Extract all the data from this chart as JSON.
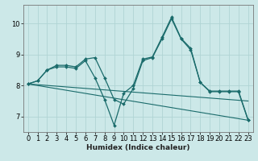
{
  "xlabel": "Humidex (Indice chaleur)",
  "background_color": "#cce8e8",
  "grid_color": "#b0d4d4",
  "line_color": "#1a6b6b",
  "xlim": [
    -0.5,
    23.5
  ],
  "ylim": [
    6.5,
    10.6
  ],
  "yticks": [
    7,
    8,
    9,
    10
  ],
  "xticks": [
    0,
    1,
    2,
    3,
    4,
    5,
    6,
    7,
    8,
    9,
    10,
    11,
    12,
    13,
    14,
    15,
    16,
    17,
    18,
    19,
    20,
    21,
    22,
    23
  ],
  "lines": [
    {
      "x": [
        0,
        1,
        2,
        3,
        4,
        5,
        6,
        7,
        8,
        9,
        10,
        11,
        12,
        13,
        14,
        15,
        16,
        17,
        18,
        19,
        20,
        21,
        22,
        23
      ],
      "y": [
        8.05,
        8.15,
        8.5,
        8.65,
        8.65,
        8.6,
        8.85,
        8.9,
        8.25,
        7.55,
        7.4,
        7.9,
        8.8,
        8.9,
        9.5,
        10.15,
        9.5,
        9.15,
        8.1,
        7.8,
        7.8,
        7.8,
        7.8,
        6.88
      ],
      "marker": "D",
      "lw": 0.9,
      "ms": 2.0
    },
    {
      "x": [
        0,
        1,
        2,
        3,
        4,
        5,
        6,
        7,
        8,
        9,
        10,
        11,
        12,
        13,
        14,
        15,
        16,
        17,
        18,
        19,
        20,
        21,
        22,
        23
      ],
      "y": [
        8.05,
        8.15,
        8.5,
        8.6,
        8.6,
        8.55,
        8.8,
        8.25,
        7.55,
        6.72,
        7.75,
        8.0,
        8.85,
        8.92,
        9.55,
        10.2,
        9.52,
        9.2,
        8.1,
        7.82,
        7.82,
        7.82,
        7.82,
        6.9
      ],
      "marker": "D",
      "lw": 0.9,
      "ms": 2.0
    },
    {
      "x": [
        0,
        23
      ],
      "y": [
        8.05,
        6.88
      ],
      "marker": null,
      "lw": 0.8,
      "ms": 0
    },
    {
      "x": [
        0,
        23
      ],
      "y": [
        8.05,
        7.5
      ],
      "marker": null,
      "lw": 0.8,
      "ms": 0
    }
  ]
}
